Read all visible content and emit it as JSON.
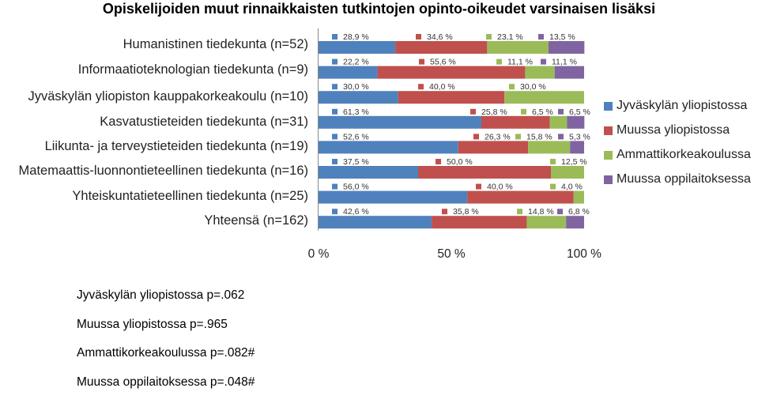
{
  "chart_data": {
    "type": "bar",
    "orientation": "horizontal",
    "stacked": "percent",
    "title": "Opiskelijoiden muut rinnaikkaisten tutkintojen opinto-oikeudet varsinaisen lisäksi",
    "categories": [
      "Humanistinen tiedekunta (n=52)",
      "Informaatioteknologian tiedekunta (n=9)",
      "Jyväskylän yliopiston kauppakorkeakoulu (n=10)",
      "Kasvatustieteiden tiedekunta (n=31)",
      "Liikunta- ja terveystieteiden tiedekunta (n=19)",
      "Matemaattis-luonnontieteellinen tiedekunta (n=16)",
      "Yhteiskuntatieteellinen tiedekunta (n=25)",
      "Yhteensä (n=162)"
    ],
    "series": [
      {
        "name": "Jyväskylän yliopistossa",
        "color": "#4F81BD",
        "values": [
          28.9,
          22.2,
          30.0,
          61.3,
          52.6,
          37.5,
          56.0,
          42.6
        ]
      },
      {
        "name": "Muussa yliopistossa",
        "color": "#C0504D",
        "values": [
          34.6,
          55.6,
          40.0,
          25.8,
          26.3,
          50.0,
          40.0,
          35.8
        ]
      },
      {
        "name": "Ammattikorkeakoulussa",
        "color": "#9BBB59",
        "values": [
          23.1,
          11.1,
          30.0,
          6.5,
          15.8,
          12.5,
          4.0,
          14.8
        ]
      },
      {
        "name": "Muussa oppilaitoksessa",
        "color": "#8064A2",
        "values": [
          13.5,
          11.1,
          0,
          6.5,
          5.3,
          0,
          0,
          6.8
        ]
      }
    ],
    "data_labels": [
      [
        "28,9 %",
        "34,6 %",
        "23,1 %",
        "13,5 %"
      ],
      [
        "22,2 %",
        "55,6 %",
        "11,1 %",
        "11,1 %"
      ],
      [
        "30,0 %",
        "40,0 %",
        "30,0 %",
        ""
      ],
      [
        "61,3 %",
        "25,8 %",
        "6,5 %",
        "6,5 %"
      ],
      [
        "52,6 %",
        "26,3 %",
        "15,8 %",
        "5,3 %"
      ],
      [
        "37,5 %",
        "50,0 %",
        "12,5 %",
        ""
      ],
      [
        "56,0 %",
        "40,0 %",
        "4,0 %",
        ""
      ],
      [
        "42,6 %",
        "35,8 %",
        "14,8 %",
        "6,8 %"
      ]
    ],
    "xlim": [
      0,
      100
    ],
    "x_ticks": [
      "0 %",
      "50 %",
      "100 %"
    ],
    "legend_position": "right",
    "grid": false
  },
  "notes": {
    "pvalues": [
      "Jyväskylän yliopistossa p=.062",
      "Muussa yliopistossa p=.965",
      "Ammattikorkeakoulussa p=.082#",
      "Muussa oppilaitoksessa p=.048#"
    ]
  }
}
